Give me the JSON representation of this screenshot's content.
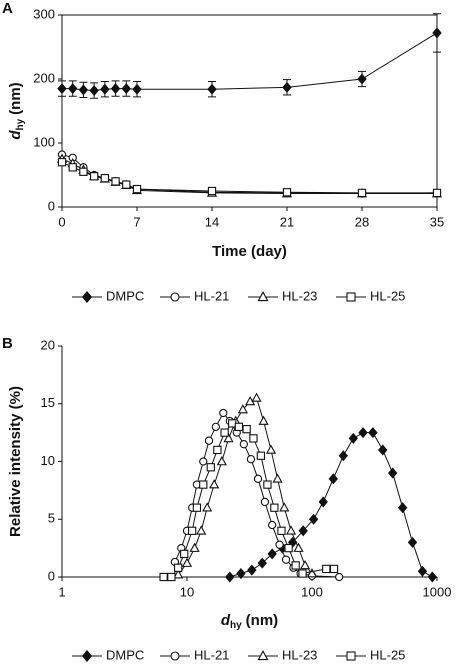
{
  "chart_data": [
    {
      "type": "line",
      "panel_label": "A",
      "x_label": "Time (day)",
      "y_label": {
        "main": "d",
        "sub": "hy",
        "unit": "(nm)"
      },
      "xlim": [
        0,
        35
      ],
      "xticks": [
        0,
        7,
        14,
        21,
        28,
        35
      ],
      "ylim": [
        0,
        300
      ],
      "yticks": [
        0,
        100,
        200,
        300
      ],
      "frame": true,
      "log_x": false,
      "series": [
        {
          "name": "DMPC",
          "color": "#111111",
          "marker": "diamond",
          "x": [
            0,
            1,
            2,
            3,
            4,
            5,
            6,
            7,
            14,
            21,
            28,
            35
          ],
          "values": [
            185,
            185,
            183,
            182,
            184,
            185,
            185,
            184,
            184,
            187,
            200,
            272
          ],
          "errors": [
            12,
            12,
            12,
            12,
            12,
            12,
            12,
            12,
            12,
            12,
            12,
            30
          ]
        },
        {
          "name": "HL-21",
          "color": "#111111",
          "marker": "circle",
          "x": [
            0,
            1,
            2,
            3,
            4,
            5,
            6,
            7,
            14,
            21,
            28,
            35
          ],
          "values": [
            82,
            77,
            62,
            50,
            45,
            40,
            35,
            28,
            23,
            22,
            21,
            22
          ]
        },
        {
          "name": "HL-23",
          "color": "#111111",
          "marker": "triangle",
          "x": [
            0,
            1,
            2,
            3,
            4,
            5,
            6,
            7,
            14,
            21,
            28,
            35
          ],
          "values": [
            75,
            68,
            58,
            48,
            44,
            39,
            34,
            26,
            22,
            21,
            21,
            21
          ]
        },
        {
          "name": "HL-25",
          "color": "#111111",
          "marker": "square",
          "x": [
            0,
            1,
            2,
            3,
            4,
            5,
            6,
            7,
            14,
            21,
            28,
            35
          ],
          "values": [
            70,
            62,
            55,
            48,
            45,
            40,
            35,
            28,
            25,
            23,
            22,
            22
          ]
        }
      ]
    },
    {
      "type": "line",
      "panel_label": "B",
      "x_label": {
        "main": "d",
        "sub": "hy",
        "unit": "(nm)"
      },
      "y_label": "Relative intensity (%)",
      "xlim": [
        1,
        1000
      ],
      "xticks": [
        1,
        10,
        100,
        1000
      ],
      "ylim": [
        0,
        20
      ],
      "yticks": [
        0,
        5,
        10,
        15,
        20
      ],
      "frame": false,
      "log_x": true,
      "series": [
        {
          "name": "DMPC",
          "color": "#111111",
          "marker": "diamond",
          "x": [
            22,
            27,
            33,
            40,
            48,
            58,
            70,
            85,
            103,
            123,
            148,
            178,
            214,
            256,
            307,
            368,
            442,
            531,
            637,
            765,
            918
          ],
          "values": [
            0,
            0.3,
            0.6,
            1.2,
            2.0,
            2.5,
            3.0,
            4.0,
            5.0,
            6.5,
            8.5,
            10.5,
            12,
            12.5,
            12.5,
            11,
            9,
            6,
            3,
            0.5,
            0
          ]
        },
        {
          "name": "HL-21",
          "color": "#111111",
          "marker": "circle",
          "x": [
            8,
            9,
            10,
            11,
            12,
            13.5,
            15,
            17,
            19.5,
            22,
            25,
            28.5,
            32.5,
            37,
            42,
            48,
            55,
            62,
            71,
            81,
            100,
            165
          ],
          "values": [
            1.3,
            2.5,
            4,
            6,
            8,
            10,
            11.8,
            13,
            14.2,
            13.5,
            12.5,
            11.5,
            10.2,
            8.5,
            6.5,
            4.5,
            2.8,
            1.5,
            0.8,
            0.3,
            0.1,
            0
          ]
        },
        {
          "name": "HL-23",
          "color": "#111111",
          "marker": "triangle",
          "x": [
            8.5,
            10,
            11.5,
            13,
            14.5,
            16.5,
            19,
            21.5,
            24.5,
            28,
            32,
            36,
            41,
            47,
            53,
            60,
            68,
            78,
            88,
            100
          ],
          "values": [
            0.2,
            1.2,
            2.5,
            4,
            6,
            8,
            10,
            12,
            13.5,
            14.5,
            15.2,
            15.5,
            13.5,
            11,
            8.5,
            6,
            4,
            2.5,
            1,
            0.3
          ]
        },
        {
          "name": "HL-25",
          "color": "#111111",
          "marker": "square",
          "x": [
            6.5,
            7.5,
            8.5,
            9.5,
            11,
            12,
            13.5,
            15.5,
            17.5,
            20,
            23,
            26,
            30,
            34,
            39,
            44,
            50,
            57,
            65,
            74,
            84,
            130,
            150
          ],
          "values": [
            0,
            0,
            0.8,
            2,
            4,
            6,
            8,
            9.5,
            11,
            12.5,
            13.3,
            13,
            12.8,
            12,
            10.5,
            8,
            6,
            4,
            2.5,
            1,
            0.3,
            0.7,
            0.7
          ]
        }
      ]
    }
  ]
}
